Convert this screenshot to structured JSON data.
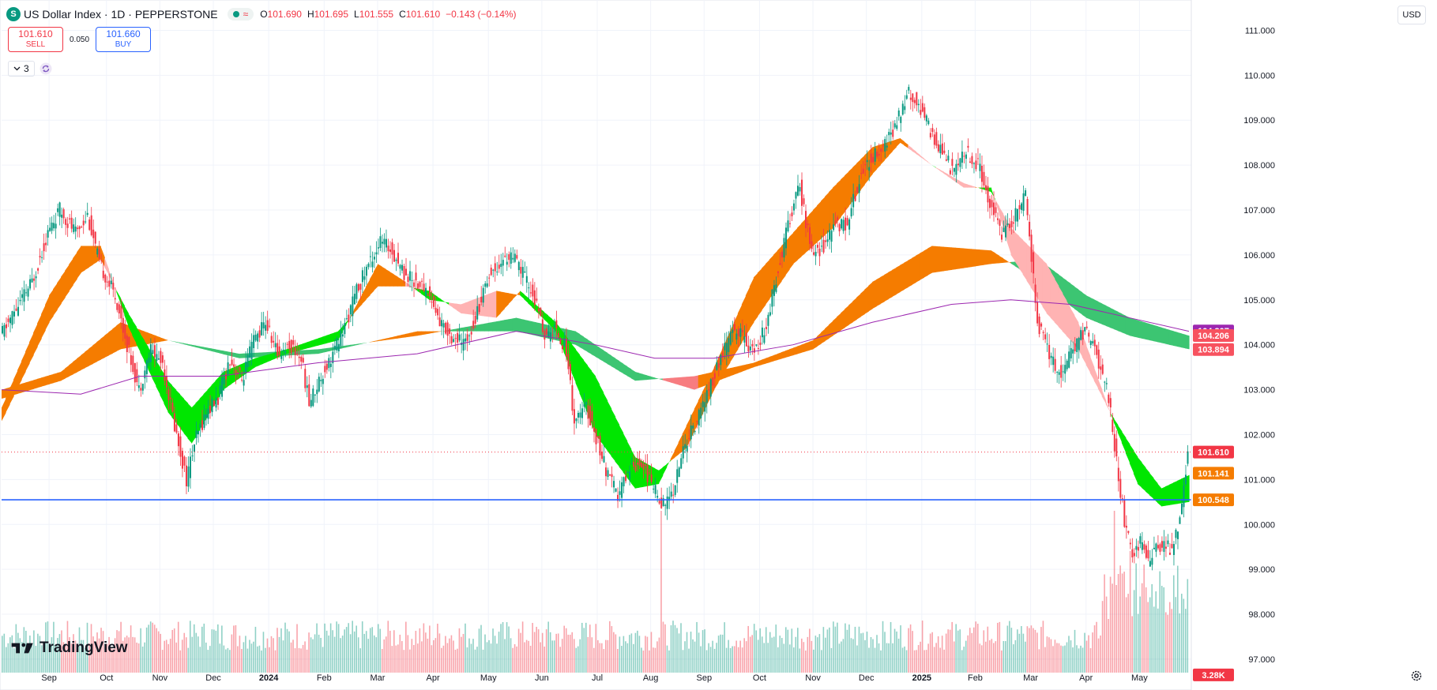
{
  "header": {
    "symbol_badge": "S",
    "title": "US Dollar Index · 1D · PEPPERSTONE",
    "wave_icon": "≈",
    "open_label": "O",
    "open": "101.690",
    "high_label": "H",
    "high": "101.695",
    "low_label": "L",
    "low": "101.555",
    "close_label": "C",
    "close": "101.610",
    "change": "−0.143 (−0.14%)"
  },
  "trade": {
    "sell_price": "101.610",
    "sell_label": "SELL",
    "spread": "0.050",
    "buy_price": "101.660",
    "buy_label": "BUY"
  },
  "indicators": {
    "count": "3"
  },
  "currency": "USD",
  "branding": "TradingView",
  "colors": {
    "up": "#089981",
    "down": "#f23645",
    "accent": "#2962ff"
  },
  "chart_data": {
    "type": "candlestick",
    "price_range": [
      96.7,
      111.5
    ],
    "y_ticks": [
      "111.000",
      "110.000",
      "109.000",
      "108.000",
      "107.000",
      "106.000",
      "105.000",
      "104.000",
      "103.000",
      "102.000",
      "101.000",
      "100.000",
      "99.000",
      "98.000",
      "97.000"
    ],
    "x_ticks": [
      "Sep",
      "Oct",
      "Nov",
      "Dec",
      "2024",
      "Feb",
      "Mar",
      "Apr",
      "May",
      "Jun",
      "Jul",
      "Aug",
      "Sep",
      "Oct",
      "Nov",
      "Dec",
      "2025",
      "Feb",
      "Mar",
      "Apr",
      "May"
    ],
    "bold_ticks": [
      "2024",
      "2025"
    ],
    "price_path": [
      [
        0,
        104.2
      ],
      [
        8,
        104.8
      ],
      [
        16,
        105.4
      ],
      [
        24,
        106.5
      ],
      [
        30,
        107.0
      ],
      [
        38,
        106.5
      ],
      [
        44,
        106.9
      ],
      [
        50,
        105.8
      ],
      [
        58,
        105.1
      ],
      [
        64,
        104.0
      ],
      [
        70,
        103.0
      ],
      [
        76,
        103.9
      ],
      [
        82,
        103.6
      ],
      [
        88,
        102.2
      ],
      [
        94,
        101.0
      ],
      [
        98,
        101.8
      ],
      [
        104,
        102.5
      ],
      [
        110,
        102.8
      ],
      [
        116,
        103.7
      ],
      [
        122,
        103.2
      ],
      [
        128,
        104.1
      ],
      [
        134,
        104.5
      ],
      [
        140,
        103.8
      ],
      [
        146,
        104.0
      ],
      [
        152,
        103.7
      ],
      [
        156,
        102.7
      ],
      [
        162,
        103.3
      ],
      [
        168,
        103.8
      ],
      [
        174,
        104.4
      ],
      [
        180,
        105.2
      ],
      [
        186,
        105.8
      ],
      [
        192,
        106.3
      ],
      [
        198,
        106.1
      ],
      [
        204,
        105.6
      ],
      [
        210,
        105.4
      ],
      [
        216,
        105.2
      ],
      [
        222,
        104.5
      ],
      [
        228,
        104.2
      ],
      [
        234,
        104.0
      ],
      [
        240,
        104.6
      ],
      [
        246,
        105.5
      ],
      [
        252,
        105.8
      ],
      [
        258,
        106.0
      ],
      [
        264,
        105.6
      ],
      [
        270,
        105.0
      ],
      [
        276,
        104.1
      ],
      [
        280,
        104.4
      ],
      [
        286,
        103.9
      ],
      [
        290,
        102.3
      ],
      [
        296,
        102.6
      ],
      [
        300,
        102.1
      ],
      [
        306,
        101.2
      ],
      [
        312,
        100.6
      ],
      [
        318,
        101.3
      ],
      [
        324,
        101.4
      ],
      [
        330,
        100.8
      ],
      [
        336,
        100.4
      ],
      [
        340,
        100.8
      ],
      [
        346,
        101.8
      ],
      [
        352,
        102.3
      ],
      [
        358,
        103.0
      ],
      [
        364,
        103.7
      ],
      [
        370,
        104.3
      ],
      [
        376,
        104.2
      ],
      [
        380,
        103.8
      ],
      [
        386,
        104.3
      ],
      [
        392,
        105.5
      ],
      [
        398,
        106.7
      ],
      [
        404,
        107.5
      ],
      [
        410,
        106.0
      ],
      [
        416,
        106.2
      ],
      [
        422,
        106.7
      ],
      [
        428,
        106.7
      ],
      [
        434,
        107.7
      ],
      [
        440,
        108.2
      ],
      [
        446,
        108.4
      ],
      [
        452,
        108.8
      ],
      [
        458,
        109.6
      ],
      [
        464,
        109.4
      ],
      [
        470,
        108.7
      ],
      [
        476,
        108.3
      ],
      [
        482,
        107.8
      ],
      [
        488,
        108.3
      ],
      [
        494,
        108.0
      ],
      [
        500,
        107.2
      ],
      [
        506,
        106.5
      ],
      [
        512,
        106.8
      ],
      [
        518,
        107.3
      ],
      [
        524,
        104.5
      ],
      [
        530,
        103.8
      ],
      [
        536,
        103.3
      ],
      [
        542,
        103.9
      ],
      [
        548,
        104.3
      ],
      [
        552,
        104.0
      ],
      [
        556,
        103.5
      ],
      [
        560,
        102.8
      ],
      [
        564,
        101.4
      ],
      [
        568,
        100.1
      ],
      [
        572,
        99.3
      ],
      [
        576,
        99.6
      ],
      [
        580,
        99.2
      ],
      [
        584,
        99.4
      ],
      [
        588,
        99.6
      ],
      [
        592,
        99.4
      ],
      [
        596,
        100.1
      ],
      [
        600,
        101.6
      ]
    ],
    "ribbons": [
      {
        "name": "fast",
        "pts": [
          [
            0,
            102.3,
            102.6
          ],
          [
            24,
            104.5,
            105.1
          ],
          [
            40,
            105.6,
            106.2
          ],
          [
            50,
            105.9,
            106.2
          ],
          [
            64,
            104.7,
            104.4
          ],
          [
            84,
            103.2,
            102.5
          ],
          [
            96,
            102.6,
            101.8
          ],
          [
            112,
            103.4,
            103.0
          ],
          [
            128,
            103.7,
            103.5
          ],
          [
            144,
            103.9,
            103.8
          ],
          [
            170,
            104.3,
            104.1
          ],
          [
            190,
            105.3,
            105.8
          ],
          [
            204,
            105.3,
            105.4
          ],
          [
            216,
            105.2,
            105.0
          ],
          [
            232,
            104.7,
            104.9
          ],
          [
            250,
            104.6,
            105.2
          ],
          [
            262,
            105.2,
            105.1
          ],
          [
            280,
            104.5,
            104.3
          ],
          [
            300,
            103.3,
            102.0
          ],
          [
            320,
            101.5,
            100.8
          ],
          [
            332,
            101.2,
            100.9
          ],
          [
            346,
            101.7,
            102.2
          ],
          [
            360,
            103.0,
            103.5
          ],
          [
            380,
            104.5,
            105.5
          ],
          [
            400,
            105.8,
            106.5
          ],
          [
            420,
            106.6,
            107.5
          ],
          [
            440,
            107.8,
            108.4
          ],
          [
            454,
            108.5,
            108.6
          ],
          [
            470,
            108.0,
            108.0
          ],
          [
            486,
            107.5,
            107.6
          ],
          [
            500,
            107.5,
            107.4
          ],
          [
            510,
            106.0,
            106.6
          ],
          [
            528,
            104.7,
            105.8
          ],
          [
            544,
            103.9,
            104.5
          ],
          [
            560,
            102.5,
            102.5
          ],
          [
            574,
            101.5,
            100.9
          ],
          [
            586,
            100.8,
            100.4
          ],
          [
            600,
            101.1,
            100.5
          ]
        ]
      },
      {
        "name": "slow",
        "pts": [
          [
            0,
            102.8,
            103.0
          ],
          [
            30,
            103.2,
            103.4
          ],
          [
            60,
            103.9,
            104.5
          ],
          [
            84,
            104.1,
            104.1
          ],
          [
            120,
            103.8,
            103.7
          ],
          [
            160,
            103.9,
            103.8
          ],
          [
            210,
            104.2,
            104.3
          ],
          [
            260,
            104.6,
            104.3
          ],
          [
            290,
            104.3,
            104.0
          ],
          [
            320,
            103.4,
            103.2
          ],
          [
            350,
            103.0,
            103.3
          ],
          [
            380,
            103.5,
            103.6
          ],
          [
            410,
            103.9,
            104.1
          ],
          [
            440,
            104.8,
            105.4
          ],
          [
            470,
            105.6,
            106.2
          ],
          [
            500,
            105.8,
            106.1
          ],
          [
            524,
            105.9,
            105.4
          ],
          [
            548,
            105.1,
            104.6
          ],
          [
            570,
            104.6,
            104.2
          ],
          [
            600,
            104.2,
            103.9
          ]
        ]
      }
    ],
    "ma200": [
      [
        0,
        103.0
      ],
      [
        40,
        102.9
      ],
      [
        70,
        103.3
      ],
      [
        110,
        103.3
      ],
      [
        160,
        103.6
      ],
      [
        210,
        103.8
      ],
      [
        260,
        104.3
      ],
      [
        300,
        104.0
      ],
      [
        330,
        103.7
      ],
      [
        360,
        103.7
      ],
      [
        400,
        104.0
      ],
      [
        440,
        104.5
      ],
      [
        480,
        104.9
      ],
      [
        510,
        105.0
      ],
      [
        540,
        104.9
      ],
      [
        570,
        104.6
      ],
      [
        600,
        104.3
      ]
    ],
    "volume": {
      "spikes": [
        [
          333,
          3.28
        ],
        [
          562,
          2.1
        ]
      ],
      "base_label": "3.28K"
    },
    "hline": 100.548,
    "current_price": 101.61,
    "price_labels": [
      {
        "text": "104.307",
        "price": 104.307,
        "color": "#9c27b0"
      },
      {
        "text": "104.206",
        "price": 104.206,
        "color": "#f7525f"
      },
      {
        "text": "103.894",
        "price": 103.894,
        "color": "#f7525f"
      },
      {
        "text": "101.610",
        "price": 101.61,
        "color": "#f23645"
      },
      {
        "text": "101.141",
        "price": 101.141,
        "color": "#f57c00"
      },
      {
        "text": "100.548",
        "price": 100.548,
        "color": "#f57c00"
      },
      {
        "text": "3.28K",
        "price": 96.65,
        "color": "#f23645"
      }
    ]
  }
}
